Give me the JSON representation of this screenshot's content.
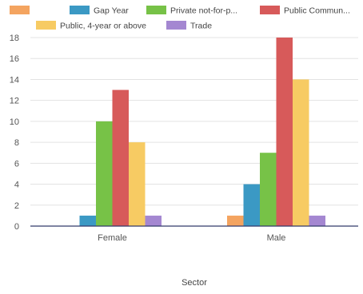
{
  "chart_data": {
    "type": "bar",
    "categories": [
      "Female",
      "Male"
    ],
    "series": [
      {
        "name": "",
        "color": "#f4a460",
        "values": [
          0,
          1
        ]
      },
      {
        "name": "Gap Year",
        "color": "#3b99c4",
        "values": [
          1,
          4
        ]
      },
      {
        "name": "Private not-for-p...",
        "color": "#77c247",
        "values": [
          10,
          7
        ]
      },
      {
        "name": "Public Commun...",
        "color": "#d75a5a",
        "values": [
          13,
          18
        ]
      },
      {
        "name": "Public, 4-year or above",
        "color": "#f7cb63",
        "values": [
          8,
          14
        ]
      },
      {
        "name": "Trade",
        "color": "#a487d1",
        "values": [
          1,
          1
        ]
      }
    ],
    "xlabel": "Sector",
    "ylabel": "",
    "ylim": [
      0,
      18
    ],
    "yticks": [
      "0",
      "2",
      "4",
      "6",
      "8",
      "10",
      "12",
      "14",
      "16",
      "18"
    ],
    "grid": true,
    "legend_position": "top"
  }
}
